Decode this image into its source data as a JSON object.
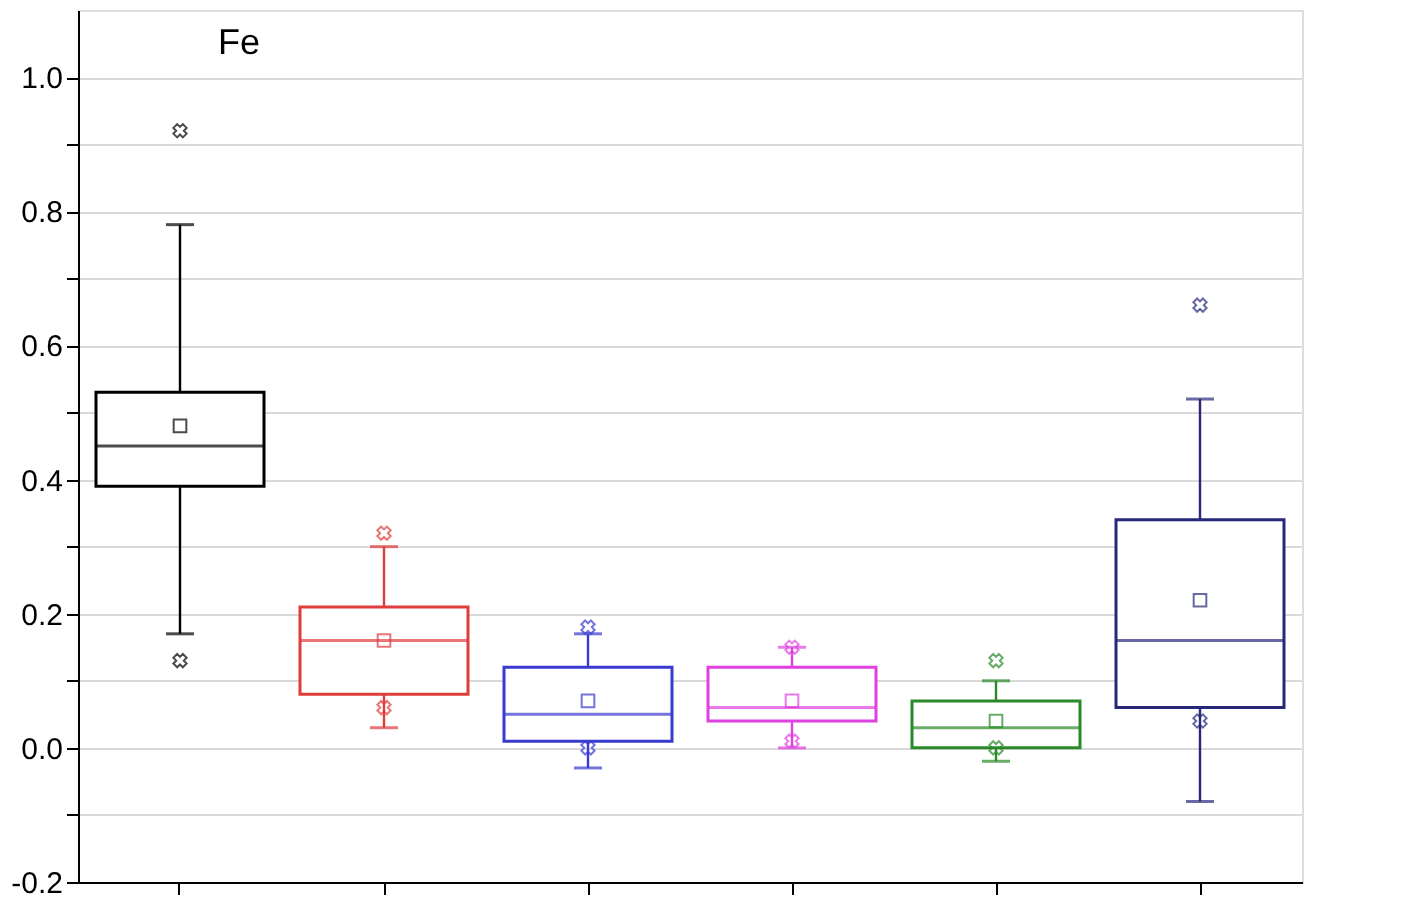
{
  "chart_data": {
    "type": "box",
    "title": "Fe",
    "categories": [
      null,
      null,
      null,
      null,
      null,
      null
    ],
    "colors": [
      "#000000",
      "#e03c3c",
      "#3a3ad0",
      "#e040e0",
      "#2a8a2a",
      "#28287a"
    ],
    "boxes": [
      {
        "low": 0.17,
        "q1": 0.39,
        "median": 0.45,
        "q3": 0.53,
        "high": 0.78,
        "mean": 0.48,
        "outliers": [
          0.92,
          0.13
        ]
      },
      {
        "low": 0.03,
        "q1": 0.08,
        "median": 0.16,
        "q3": 0.21,
        "high": 0.3,
        "mean": 0.16,
        "outliers": [
          0.32,
          0.06
        ]
      },
      {
        "low": -0.03,
        "q1": 0.01,
        "median": 0.05,
        "q3": 0.12,
        "high": 0.17,
        "mean": 0.07,
        "outliers": [
          0.18,
          0.0
        ]
      },
      {
        "low": 0.0,
        "q1": 0.04,
        "median": 0.06,
        "q3": 0.12,
        "high": 0.15,
        "mean": 0.07,
        "outliers": [
          0.15,
          0.01
        ]
      },
      {
        "low": -0.02,
        "q1": 0.0,
        "median": 0.03,
        "q3": 0.07,
        "high": 0.1,
        "mean": 0.04,
        "outliers": [
          0.13,
          0.0
        ]
      },
      {
        "low": -0.08,
        "q1": 0.06,
        "median": 0.16,
        "q3": 0.34,
        "high": 0.52,
        "mean": 0.22,
        "outliers": [
          0.66,
          0.04
        ]
      }
    ],
    "ylim": [
      -0.2,
      1.1
    ],
    "yticks": [
      {
        "value": -0.2,
        "label": "-0.2"
      },
      {
        "value": -0.1,
        "label": null
      },
      {
        "value": 0.0,
        "label": "0.0"
      },
      {
        "value": 0.1,
        "label": null
      },
      {
        "value": 0.2,
        "label": "0.2"
      },
      {
        "value": 0.3,
        "label": null
      },
      {
        "value": 0.4,
        "label": "0.4"
      },
      {
        "value": 0.5,
        "label": null
      },
      {
        "value": 0.6,
        "label": "0.6"
      },
      {
        "value": 0.7,
        "label": null
      },
      {
        "value": 0.8,
        "label": "0.8"
      },
      {
        "value": 0.9,
        "label": null
      },
      {
        "value": 1.0,
        "label": "1.0"
      }
    ],
    "grid": true,
    "tick_labels": "y"
  }
}
